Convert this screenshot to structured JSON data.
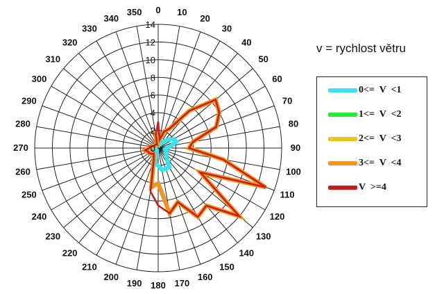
{
  "chart_data": {
    "type": "radar",
    "title": "",
    "theta_ticks": [
      0,
      10,
      20,
      30,
      40,
      50,
      60,
      70,
      80,
      90,
      100,
      110,
      120,
      130,
      140,
      150,
      160,
      170,
      180,
      190,
      200,
      210,
      220,
      230,
      240,
      250,
      260,
      270,
      280,
      290,
      300,
      310,
      320,
      330,
      340,
      350
    ],
    "r_ticks": [
      0,
      2,
      4,
      6,
      8,
      10,
      12,
      14
    ],
    "rlim": [
      0,
      14
    ],
    "grid": true,
    "legend_title": "v = rychlost větru",
    "legend_position": "right",
    "series": [
      {
        "name": "0<=  V  <1",
        "color": "#33e5f5",
        "values": [
          0.3,
          0.3,
          0.4,
          0.5,
          1.0,
          1.5,
          2.0,
          2.2,
          1.5,
          1.0,
          0.8,
          1.0,
          1.0,
          1.2,
          1.5,
          2.5,
          2.5,
          2.5,
          2.0,
          1.8,
          0.5,
          0.3,
          0.3,
          0.3,
          0.3,
          0.3,
          0.3,
          0.5,
          0.3,
          0.3,
          0.3,
          0.3,
          0.3,
          0.3,
          0.3,
          0.3
        ]
      },
      {
        "name": "1<=  V  <2",
        "color": "#22ee33",
        "values": [
          1.2,
          1.0,
          2.0,
          2.5,
          5.5,
          8.5,
          8.0,
          7.0,
          4.0,
          3.5,
          7.5,
          13.0,
          5.5,
          12.0,
          8.5,
          9.0,
          6.5,
          7.5,
          4.0,
          4.5,
          1.5,
          1.0,
          0.8,
          1.0,
          1.2,
          1.2,
          1.5,
          1.0,
          1.0,
          0.6,
          0.5,
          0.5,
          0.5,
          0.5,
          0.4,
          1.5
        ]
      },
      {
        "name": "2<=  V  <3",
        "color": "#f2c418",
        "values": [
          1.2,
          1.0,
          2.0,
          2.5,
          5.5,
          8.5,
          8.0,
          7.0,
          4.0,
          3.5,
          7.5,
          13.0,
          5.5,
          12.0,
          8.5,
          9.0,
          6.5,
          7.5,
          4.0,
          4.5,
          1.5,
          1.0,
          0.8,
          1.0,
          1.2,
          1.2,
          1.5,
          1.0,
          1.0,
          0.6,
          0.5,
          0.5,
          0.5,
          0.5,
          0.4,
          1.5
        ]
      },
      {
        "name": "3<=  V  <4",
        "color": "#f2941e",
        "values": [
          1.2,
          1.0,
          2.0,
          2.5,
          5.5,
          8.5,
          8.0,
          7.0,
          4.0,
          3.5,
          7.5,
          13.0,
          5.5,
          12.0,
          8.5,
          9.0,
          6.5,
          7.5,
          4.0,
          4.5,
          1.5,
          1.0,
          0.8,
          1.0,
          1.2,
          1.2,
          1.5,
          1.0,
          1.0,
          0.6,
          0.5,
          0.5,
          0.5,
          0.5,
          0.4,
          1.5
        ]
      },
      {
        "name": "V  >=4",
        "color": "#cc1a14",
        "values": [
          3.0,
          1.0,
          2.0,
          2.5,
          5.5,
          8.5,
          8.0,
          7.0,
          4.0,
          3.5,
          7.5,
          13.0,
          5.5,
          12.0,
          8.5,
          9.0,
          6.5,
          7.5,
          6.5,
          5.0,
          1.5,
          1.0,
          0.8,
          1.0,
          1.2,
          1.2,
          1.5,
          1.0,
          1.0,
          0.6,
          0.5,
          0.5,
          0.5,
          0.5,
          0.4,
          1.5
        ]
      }
    ]
  }
}
